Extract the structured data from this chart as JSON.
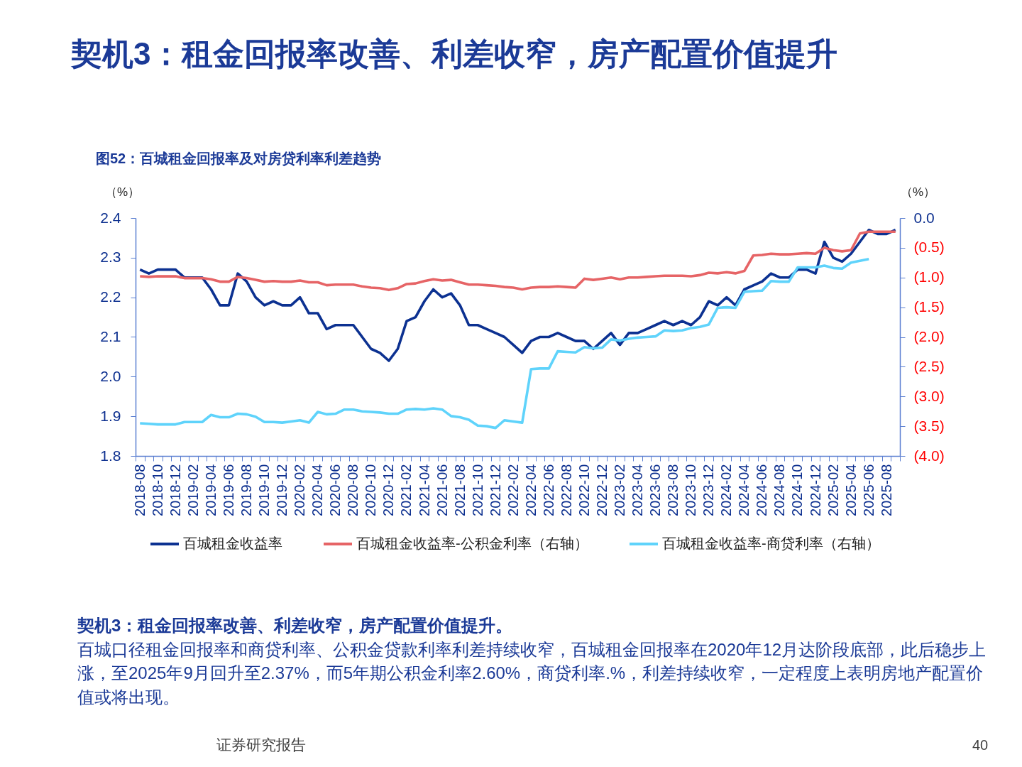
{
  "chart_data": {
    "type": "line",
    "title": "图52：百城租金回报率及对房贷利率利差趋势",
    "annotations": [
      "契机3：租金回报率改善、利差收窄，房产配置价值提升",
      "契机3：租金回报率改善、利差收窄，房产配置价值提升。",
      "百城口径租金回报率和商贷利率、公积金贷款利率利差持续收窄，百城租金回报率在2020年12月达阶段底部，此后稳步上涨，至2025年9月回升至2.37%，而5年期公积金利率2.60%，商贷利率.%，利差持续收窄，一定程度上表明房地产配置价值或将出现。",
      "证券研究报告",
      "40"
    ],
    "ylabel": "（%）",
    "y2label": "（%）",
    "categories": [
      "2018-08",
      null,
      "2018-10",
      null,
      "2018-12",
      null,
      "2019-02",
      null,
      "2019-04",
      null,
      "2019-06",
      null,
      "2019-08",
      null,
      "2019-10",
      null,
      "2019-12",
      null,
      "2020-02",
      null,
      "2020-04",
      null,
      "2020-06",
      null,
      "2020-08",
      null,
      "2020-10",
      null,
      "2020-12",
      null,
      "2021-02",
      null,
      "2021-04",
      null,
      "2021-06",
      null,
      "2021-08",
      null,
      "2021-10",
      null,
      "2021-12",
      null,
      "2022-02",
      null,
      "2022-04",
      null,
      "2022-06",
      null,
      "2022-08",
      null,
      "2022-10",
      null,
      "2022-12",
      null,
      "2023-02",
      null,
      "2023-04",
      null,
      "2023-06",
      null,
      "2023-08",
      null,
      "2023-10",
      null,
      "2023-12",
      null,
      "2024-02",
      null,
      "2024-04",
      null,
      "2024-06",
      null,
      "2024-08",
      null,
      "2024-10",
      null,
      "2024-12",
      null,
      "2025-02",
      null,
      "2025-04",
      null,
      "2025-06",
      null,
      "2025-08",
      null
    ],
    "series": [
      {
        "name": "百城租金收益率",
        "color": "#0c3191",
        "values": [
          2.27,
          2.26,
          2.27,
          2.27,
          2.27,
          2.25,
          2.25,
          2.25,
          2.22,
          2.18,
          2.18,
          2.26,
          2.24,
          2.2,
          2.18,
          2.19,
          2.18,
          2.18,
          2.2,
          2.16,
          2.16,
          2.12,
          2.13,
          2.13,
          2.13,
          2.1,
          2.07,
          2.06,
          2.04,
          2.07,
          2.14,
          2.15,
          2.19,
          2.22,
          2.2,
          2.21,
          2.18,
          2.13,
          2.13,
          2.12,
          2.11,
          2.1,
          2.08,
          2.06,
          2.09,
          2.1,
          2.1,
          2.11,
          2.1,
          2.09,
          2.09,
          2.07,
          2.09,
          2.11,
          2.08,
          2.11,
          2.11,
          2.12,
          2.13,
          2.14,
          2.13,
          2.14,
          2.13,
          2.15,
          2.19,
          2.18,
          2.2,
          2.18,
          2.22,
          2.23,
          2.24,
          2.26,
          2.25,
          2.25,
          2.27,
          2.27,
          2.26,
          2.34,
          2.3,
          2.29,
          2.31,
          2.34,
          2.37,
          2.36,
          2.36,
          2.37
        ]
      },
      {
        "name": "百城租金收益率-公积金利率（右轴）",
        "color": "#e66466",
        "axis": "y2",
        "values": [
          -0.98,
          -0.99,
          -0.98,
          -0.98,
          -0.98,
          -1.01,
          -1.01,
          -1.01,
          -1.03,
          -1.07,
          -1.07,
          -0.99,
          -1.01,
          -1.04,
          -1.07,
          -1.06,
          -1.07,
          -1.07,
          -1.05,
          -1.08,
          -1.08,
          -1.13,
          -1.12,
          -1.12,
          -1.12,
          -1.15,
          -1.17,
          -1.18,
          -1.21,
          -1.18,
          -1.11,
          -1.1,
          -1.06,
          -1.03,
          -1.05,
          -1.04,
          -1.08,
          -1.12,
          -1.12,
          -1.13,
          -1.14,
          -1.16,
          -1.17,
          -1.2,
          -1.17,
          -1.16,
          -1.16,
          -1.15,
          -1.16,
          -1.17,
          -1.02,
          -1.04,
          -1.02,
          -1.0,
          -1.03,
          -1.0,
          -1.0,
          -0.99,
          -0.98,
          -0.97,
          -0.97,
          -0.97,
          -0.98,
          -0.96,
          -0.92,
          -0.93,
          -0.91,
          -0.93,
          -0.89,
          -0.63,
          -0.62,
          -0.6,
          -0.61,
          -0.61,
          -0.6,
          -0.59,
          -0.6,
          -0.5,
          -0.54,
          -0.56,
          -0.54,
          -0.26,
          -0.23,
          -0.23,
          -0.23,
          -0.23
        ]
      },
      {
        "name": "百城租金收益率-商贷利率（右轴）",
        "color": "#5fd3fb",
        "axis": "y2",
        "values": [
          -3.45,
          -3.46,
          -3.47,
          -3.47,
          -3.47,
          -3.43,
          -3.43,
          -3.43,
          -3.31,
          -3.35,
          -3.35,
          -3.29,
          -3.3,
          -3.34,
          -3.43,
          -3.43,
          -3.44,
          -3.42,
          -3.4,
          -3.44,
          -3.26,
          -3.3,
          -3.29,
          -3.22,
          -3.22,
          -3.25,
          -3.26,
          -3.27,
          -3.29,
          -3.29,
          -3.22,
          -3.21,
          -3.22,
          -3.2,
          -3.22,
          -3.33,
          -3.35,
          -3.39,
          -3.49,
          -3.5,
          -3.53,
          -3.4,
          -3.42,
          -3.44,
          -2.54,
          -2.53,
          -2.53,
          -2.24,
          -2.25,
          -2.26,
          -2.17,
          -2.19,
          -2.18,
          -2.04,
          -2.06,
          -2.03,
          -2.01,
          -2.0,
          -1.99,
          -1.89,
          -1.9,
          -1.89,
          -1.85,
          -1.83,
          -1.79,
          -1.51,
          -1.5,
          -1.51,
          -1.24,
          -1.23,
          -1.22,
          -1.06,
          -1.07,
          -1.07,
          -0.83,
          -0.83,
          -0.83,
          -0.8,
          -0.84,
          -0.85,
          -0.75,
          -0.72,
          -0.69,
          null,
          null,
          null
        ]
      }
    ],
    "ylim": [
      1.8,
      2.4
    ],
    "yticks": [
      1.8,
      1.9,
      {
        "value": 2.0,
        "label": "2.0"
      },
      2.1,
      2.2,
      2.3,
      2.4
    ],
    "y2lim": [
      -4.0,
      0.0
    ],
    "y2ticks": [
      {
        "value": -4.0,
        "label": "(4.0)"
      },
      {
        "value": -3.5,
        "label": "(3.5)"
      },
      {
        "value": -3.0,
        "label": "(3.0)"
      },
      {
        "value": -2.5,
        "label": "(2.5)"
      },
      {
        "value": -2.0,
        "label": "(2.0)"
      },
      {
        "value": -1.5,
        "label": "(1.5)"
      },
      {
        "value": -1.0,
        "label": "(1.0)"
      },
      {
        "value": -0.5,
        "label": "(0.5)"
      },
      {
        "value": 0.0,
        "label": "0.0"
      }
    ],
    "legend": "bottom"
  }
}
